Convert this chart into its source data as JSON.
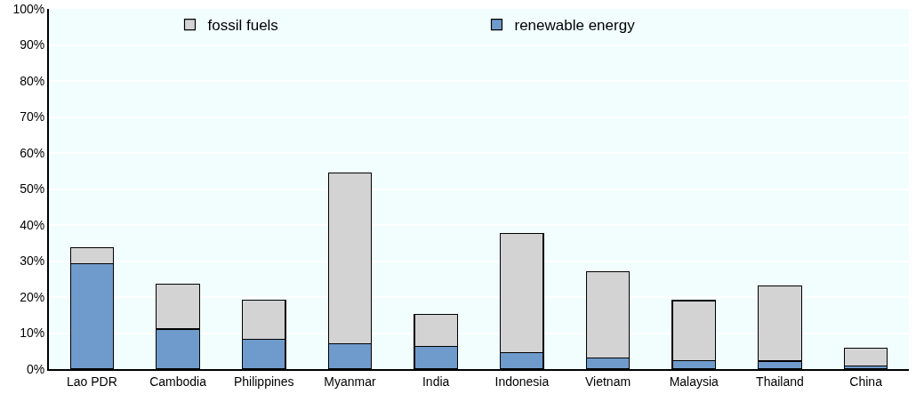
{
  "chart_data": {
    "type": "bar",
    "stacked": true,
    "categories": [
      "Lao PDR",
      "Cambodia",
      "Philippines",
      "Myanmar",
      "India",
      "Indonesia",
      "Vietnam",
      "Malaysia",
      "Thailand",
      "China"
    ],
    "series": [
      {
        "name": "renewable energy",
        "color": "#6f9bcc",
        "values": [
          29.2,
          11.1,
          8.3,
          7.0,
          6.3,
          4.5,
          3.0,
          2.4,
          2.2,
          0.8
        ]
      },
      {
        "name": "fossil fuels",
        "color": "#d3d3d3",
        "values": [
          4.6,
          12.5,
          10.9,
          47.4,
          8.9,
          33.2,
          24.1,
          16.6,
          20.8,
          5.0
        ]
      }
    ],
    "ylim": [
      0,
      100
    ],
    "yticks": [
      {
        "value": 0,
        "label": "0%"
      },
      {
        "value": 10,
        "label": "10%"
      },
      {
        "value": 20,
        "label": "20%"
      },
      {
        "value": 30,
        "label": "30%"
      },
      {
        "value": 40,
        "label": "40%"
      },
      {
        "value": 50,
        "label": "50%"
      },
      {
        "value": 60,
        "label": "60%"
      },
      {
        "value": 70,
        "label": "70%"
      },
      {
        "value": 80,
        "label": "80%"
      },
      {
        "value": 90,
        "label": "90%"
      },
      {
        "value": 100,
        "label": "100%"
      }
    ],
    "grid": "y",
    "legend": "top"
  }
}
